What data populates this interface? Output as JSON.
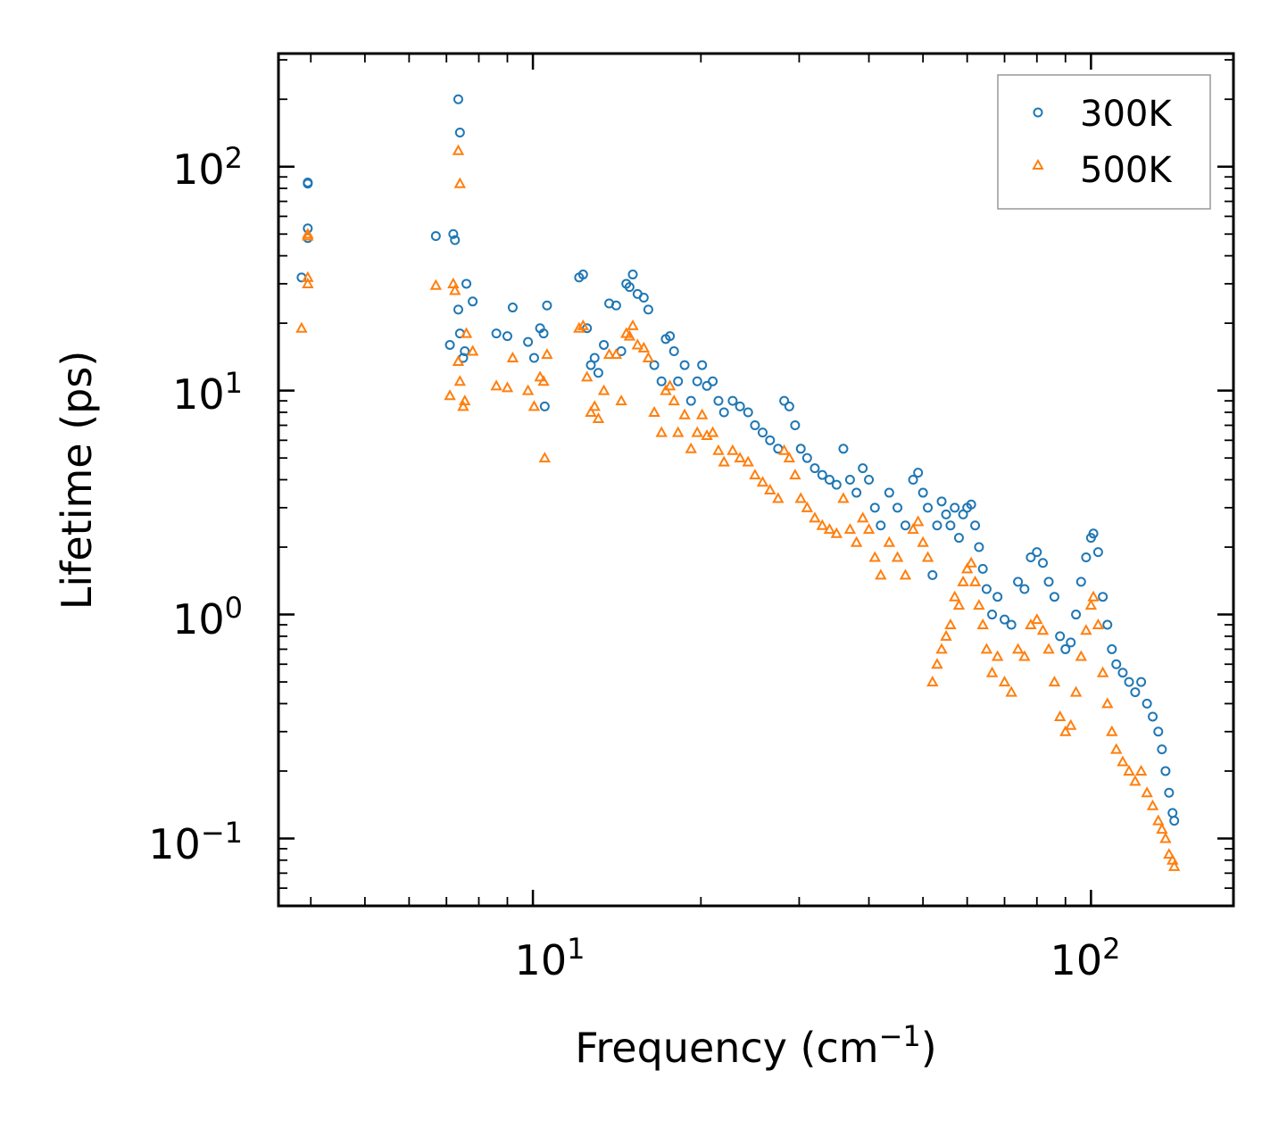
{
  "chart_data": {
    "type": "scatter",
    "xscale": "log",
    "yscale": "log",
    "xlim": [
      3.5,
      180
    ],
    "ylim": [
      0.05,
      320
    ],
    "xlabel": "Frequency (cm",
    "xlabel_sup": "−1",
    "xlabel_end": ")",
    "ylabel": "Lifetime (ps)",
    "x_ticks": [
      {
        "value": 10,
        "base": "10",
        "exp": "1"
      },
      {
        "value": 100,
        "base": "10",
        "exp": "2"
      }
    ],
    "y_ticks": [
      {
        "value": 0.1,
        "base": "10",
        "exp": "−1"
      },
      {
        "value": 1,
        "base": "10",
        "exp": "0"
      },
      {
        "value": 10,
        "base": "10",
        "exp": "1"
      },
      {
        "value": 100,
        "base": "10",
        "exp": "2"
      }
    ],
    "legend_position": "top-right",
    "series": [
      {
        "name": "300K",
        "marker": "circle",
        "color": "#1f77b4",
        "points": [
          [
            3.85,
            32
          ],
          [
            3.95,
            84
          ],
          [
            3.95,
            85
          ],
          [
            3.95,
            53
          ],
          [
            3.95,
            48
          ],
          [
            6.7,
            49
          ],
          [
            7.1,
            16
          ],
          [
            7.2,
            50
          ],
          [
            7.25,
            47
          ],
          [
            7.35,
            200
          ],
          [
            7.4,
            142
          ],
          [
            7.35,
            23
          ],
          [
            7.4,
            18
          ],
          [
            7.5,
            14
          ],
          [
            7.55,
            15
          ],
          [
            7.6,
            30
          ],
          [
            7.8,
            25
          ],
          [
            8.6,
            18
          ],
          [
            9.0,
            17.5
          ],
          [
            9.2,
            23.5
          ],
          [
            9.8,
            16.5
          ],
          [
            10.05,
            14
          ],
          [
            10.3,
            19
          ],
          [
            10.45,
            18
          ],
          [
            10.6,
            24
          ],
          [
            10.5,
            8.5
          ],
          [
            12.1,
            32
          ],
          [
            12.3,
            33
          ],
          [
            12.5,
            19
          ],
          [
            12.7,
            13
          ],
          [
            12.9,
            14
          ],
          [
            13.1,
            12
          ],
          [
            13.4,
            16
          ],
          [
            13.7,
            24.5
          ],
          [
            14.1,
            24
          ],
          [
            14.4,
            15
          ],
          [
            14.7,
            30
          ],
          [
            14.9,
            29
          ],
          [
            15.1,
            33
          ],
          [
            15.4,
            27
          ],
          [
            15.8,
            26
          ],
          [
            16.1,
            23
          ],
          [
            16.5,
            13
          ],
          [
            17.0,
            11
          ],
          [
            17.3,
            17
          ],
          [
            17.6,
            17.5
          ],
          [
            17.9,
            15
          ],
          [
            18.2,
            11
          ],
          [
            18.7,
            13
          ],
          [
            19.2,
            9
          ],
          [
            19.7,
            11
          ],
          [
            20.1,
            13
          ],
          [
            20.5,
            10.5
          ],
          [
            21.0,
            11
          ],
          [
            21.5,
            9
          ],
          [
            22.0,
            8
          ],
          [
            22.8,
            9
          ],
          [
            23.5,
            8.5
          ],
          [
            24.3,
            8
          ],
          [
            25.0,
            7
          ],
          [
            25.8,
            6.5
          ],
          [
            26.6,
            6
          ],
          [
            27.5,
            5.5
          ],
          [
            28.2,
            9
          ],
          [
            28.8,
            8.5
          ],
          [
            29.5,
            7
          ],
          [
            30.2,
            5.5
          ],
          [
            31.0,
            5
          ],
          [
            32.0,
            4.5
          ],
          [
            33.0,
            4.2
          ],
          [
            34.0,
            4
          ],
          [
            35.0,
            3.8
          ],
          [
            36.0,
            5.5
          ],
          [
            37.0,
            4
          ],
          [
            38.0,
            3.5
          ],
          [
            39.0,
            4.5
          ],
          [
            40.0,
            4
          ],
          [
            41.0,
            3
          ],
          [
            42.0,
            2.5
          ],
          [
            43.5,
            3.5
          ],
          [
            45.0,
            3
          ],
          [
            46.5,
            2.5
          ],
          [
            48.0,
            4
          ],
          [
            49.0,
            4.3
          ],
          [
            50.0,
            3.5
          ],
          [
            51.0,
            3
          ],
          [
            52.0,
            1.5
          ],
          [
            53.0,
            2.5
          ],
          [
            54.0,
            3.2
          ],
          [
            55.0,
            2.8
          ],
          [
            56.0,
            2.5
          ],
          [
            57.0,
            3
          ],
          [
            58.0,
            2.2
          ],
          [
            59.0,
            2.8
          ],
          [
            60.0,
            3
          ],
          [
            61.0,
            3.1
          ],
          [
            62.0,
            2.5
          ],
          [
            63.0,
            2
          ],
          [
            64.0,
            1.6
          ],
          [
            65.0,
            1.3
          ],
          [
            66.5,
            1.0
          ],
          [
            68.0,
            1.2
          ],
          [
            70.0,
            0.95
          ],
          [
            72.0,
            0.9
          ],
          [
            74.0,
            1.4
          ],
          [
            76.0,
            1.3
          ],
          [
            78.0,
            1.8
          ],
          [
            80.0,
            1.9
          ],
          [
            82.0,
            1.7
          ],
          [
            84.0,
            1.4
          ],
          [
            86.0,
            1.2
          ],
          [
            88.0,
            0.8
          ],
          [
            90.0,
            0.7
          ],
          [
            92.0,
            0.75
          ],
          [
            94.0,
            1.0
          ],
          [
            96.0,
            1.4
          ],
          [
            98.0,
            1.8
          ],
          [
            100.0,
            2.2
          ],
          [
            101.0,
            2.3
          ],
          [
            103.0,
            1.9
          ],
          [
            105.0,
            1.2
          ],
          [
            107.0,
            0.9
          ],
          [
            109.0,
            0.7
          ],
          [
            111.0,
            0.6
          ],
          [
            114.0,
            0.55
          ],
          [
            117.0,
            0.5
          ],
          [
            120.0,
            0.45
          ],
          [
            123.0,
            0.5
          ],
          [
            126.0,
            0.4
          ],
          [
            129.0,
            0.35
          ],
          [
            132.0,
            0.3
          ],
          [
            134.0,
            0.25
          ],
          [
            136.0,
            0.2
          ],
          [
            138.0,
            0.16
          ],
          [
            140.0,
            0.13
          ],
          [
            141.0,
            0.12
          ]
        ]
      },
      {
        "name": "500K",
        "marker": "triangle",
        "color": "#ff7f0e",
        "points": [
          [
            3.85,
            19
          ],
          [
            3.95,
            49
          ],
          [
            3.95,
            50
          ],
          [
            3.95,
            32
          ],
          [
            3.95,
            30
          ],
          [
            6.7,
            29.5
          ],
          [
            7.1,
            9.5
          ],
          [
            7.2,
            30
          ],
          [
            7.25,
            28
          ],
          [
            7.35,
            118
          ],
          [
            7.4,
            84
          ],
          [
            7.35,
            13.5
          ],
          [
            7.4,
            11
          ],
          [
            7.5,
            8.5
          ],
          [
            7.55,
            9
          ],
          [
            7.6,
            18
          ],
          [
            7.8,
            15
          ],
          [
            8.6,
            10.5
          ],
          [
            9.0,
            10.3
          ],
          [
            9.2,
            14
          ],
          [
            9.8,
            10
          ],
          [
            10.05,
            8.5
          ],
          [
            10.3,
            11.5
          ],
          [
            10.45,
            11
          ],
          [
            10.6,
            14.5
          ],
          [
            10.5,
            5
          ],
          [
            12.1,
            19
          ],
          [
            12.3,
            19.5
          ],
          [
            12.5,
            11.5
          ],
          [
            12.7,
            8
          ],
          [
            12.9,
            8.5
          ],
          [
            13.1,
            7.5
          ],
          [
            13.4,
            10
          ],
          [
            13.7,
            14.5
          ],
          [
            14.1,
            14.5
          ],
          [
            14.4,
            9
          ],
          [
            14.7,
            18
          ],
          [
            14.9,
            17.5
          ],
          [
            15.1,
            19.5
          ],
          [
            15.4,
            16
          ],
          [
            15.8,
            15.5
          ],
          [
            16.1,
            14
          ],
          [
            16.5,
            8
          ],
          [
            17.0,
            6.5
          ],
          [
            17.3,
            10
          ],
          [
            17.6,
            10.5
          ],
          [
            17.9,
            9
          ],
          [
            18.2,
            6.5
          ],
          [
            18.7,
            7.8
          ],
          [
            19.2,
            5.5
          ],
          [
            19.7,
            6.5
          ],
          [
            20.1,
            7.8
          ],
          [
            20.5,
            6.3
          ],
          [
            21.0,
            6.5
          ],
          [
            21.5,
            5.4
          ],
          [
            22.0,
            4.8
          ],
          [
            22.8,
            5.4
          ],
          [
            23.5,
            5
          ],
          [
            24.3,
            4.8
          ],
          [
            25.0,
            4.2
          ],
          [
            25.8,
            3.9
          ],
          [
            26.6,
            3.6
          ],
          [
            27.5,
            3.3
          ],
          [
            28.2,
            5.4
          ],
          [
            28.8,
            5
          ],
          [
            29.5,
            4.2
          ],
          [
            30.2,
            3.3
          ],
          [
            31.0,
            3
          ],
          [
            32.0,
            2.7
          ],
          [
            33.0,
            2.5
          ],
          [
            34.0,
            2.4
          ],
          [
            35.0,
            2.3
          ],
          [
            36.0,
            3.3
          ],
          [
            37.0,
            2.4
          ],
          [
            38.0,
            2.1
          ],
          [
            39.0,
            2.7
          ],
          [
            40.0,
            2.4
          ],
          [
            41.0,
            1.8
          ],
          [
            42.0,
            1.5
          ],
          [
            43.5,
            2.1
          ],
          [
            45.0,
            1.8
          ],
          [
            46.5,
            1.5
          ],
          [
            48.0,
            2.4
          ],
          [
            49.0,
            2.6
          ],
          [
            50.0,
            2.1
          ],
          [
            51.0,
            1.8
          ],
          [
            52.0,
            0.5
          ],
          [
            53.0,
            0.6
          ],
          [
            54.0,
            0.7
          ],
          [
            55.0,
            0.8
          ],
          [
            56.0,
            0.9
          ],
          [
            57.0,
            1.2
          ],
          [
            58.0,
            1.1
          ],
          [
            59.0,
            1.4
          ],
          [
            60.0,
            1.6
          ],
          [
            61.0,
            1.7
          ],
          [
            62.0,
            1.4
          ],
          [
            63.0,
            1.1
          ],
          [
            64.0,
            0.9
          ],
          [
            65.0,
            0.7
          ],
          [
            66.5,
            0.55
          ],
          [
            68.0,
            0.65
          ],
          [
            70.0,
            0.5
          ],
          [
            72.0,
            0.45
          ],
          [
            74.0,
            0.7
          ],
          [
            76.0,
            0.65
          ],
          [
            78.0,
            0.9
          ],
          [
            80.0,
            0.95
          ],
          [
            82.0,
            0.85
          ],
          [
            84.0,
            0.7
          ],
          [
            86.0,
            0.5
          ],
          [
            88.0,
            0.35
          ],
          [
            90.0,
            0.3
          ],
          [
            92.0,
            0.32
          ],
          [
            94.0,
            0.45
          ],
          [
            96.0,
            0.65
          ],
          [
            98.0,
            0.85
          ],
          [
            100.0,
            1.1
          ],
          [
            101.0,
            1.2
          ],
          [
            103.0,
            0.9
          ],
          [
            105.0,
            0.55
          ],
          [
            107.0,
            0.4
          ],
          [
            109.0,
            0.3
          ],
          [
            111.0,
            0.25
          ],
          [
            114.0,
            0.22
          ],
          [
            117.0,
            0.2
          ],
          [
            120.0,
            0.18
          ],
          [
            123.0,
            0.2
          ],
          [
            126.0,
            0.16
          ],
          [
            129.0,
            0.14
          ],
          [
            132.0,
            0.12
          ],
          [
            134.0,
            0.11
          ],
          [
            136.0,
            0.1
          ],
          [
            138.0,
            0.085
          ],
          [
            140.0,
            0.08
          ],
          [
            141.0,
            0.075
          ]
        ]
      }
    ]
  }
}
